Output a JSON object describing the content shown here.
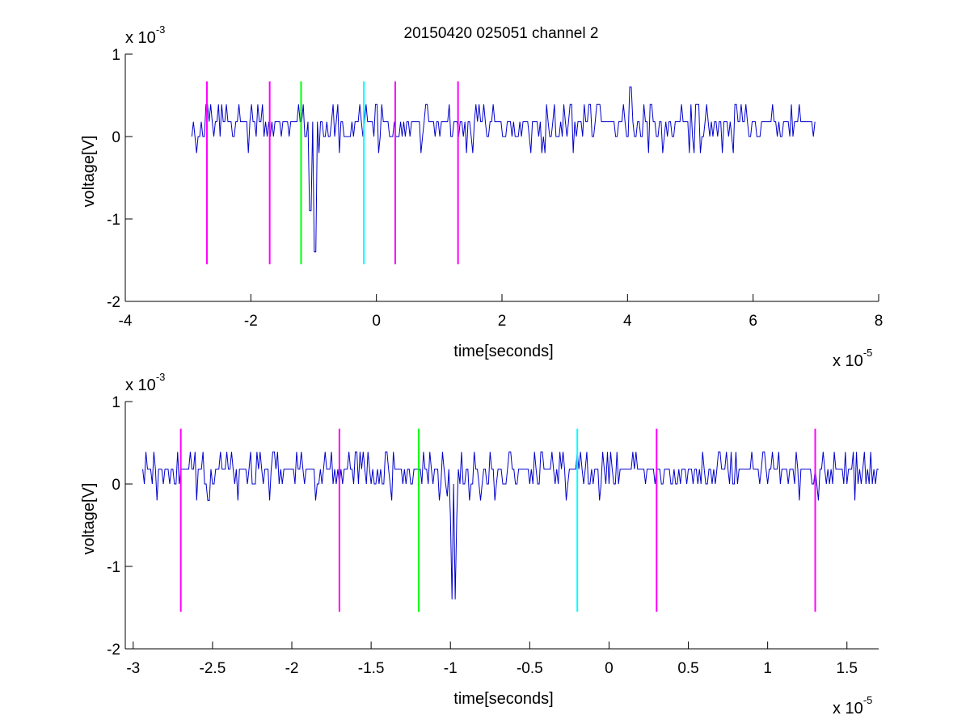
{
  "chart_data": [
    {
      "type": "line",
      "title": "20150420 025051 channel 2",
      "xlabel": "time[seconds]",
      "ylabel": "voltage[V]",
      "x_multiplier": "x 10",
      "x_exponent": "-5",
      "y_multiplier": "x 10",
      "y_exponent": "-3",
      "xlim": [
        -4,
        8
      ],
      "ylim": [
        -2,
        1
      ],
      "xticks": [
        -4,
        -2,
        0,
        2,
        4,
        6,
        8
      ],
      "xtick_labels": [
        "-4",
        "-2",
        "0",
        "2",
        "4",
        "6",
        "8"
      ],
      "yticks": [
        -2,
        -1,
        0,
        1
      ],
      "ytick_labels": [
        "-2",
        "-1",
        "0",
        "1"
      ],
      "grid": false,
      "series": [
        {
          "color": "#0000cc",
          "x_range": [
            -2.94,
            7.0
          ],
          "baseline": 0.18,
          "levels": [
            0.39,
            0.18,
            0.0,
            -0.2
          ],
          "events": [
            {
              "x": -1.05,
              "y": -0.9
            },
            {
              "x": -0.98,
              "y": -1.4
            },
            {
              "x": 4.05,
              "y": 0.6
            }
          ]
        }
      ],
      "markers": [
        {
          "x": -2.7,
          "y_range": [
            -1.55,
            0.67
          ],
          "color": "#ff00ff"
        },
        {
          "x": -1.7,
          "y_range": [
            -1.55,
            0.67
          ],
          "color": "#ff00ff"
        },
        {
          "x": -1.2,
          "y_range": [
            -1.55,
            0.67
          ],
          "color": "#00ff00"
        },
        {
          "x": -0.2,
          "y_range": [
            -1.55,
            0.67
          ],
          "color": "#00ffff"
        },
        {
          "x": 0.3,
          "y_range": [
            -1.55,
            0.67
          ],
          "color": "#ff00ff"
        },
        {
          "x": 1.3,
          "y_range": [
            -1.55,
            0.67
          ],
          "color": "#ff00ff"
        }
      ]
    },
    {
      "type": "line",
      "title": "",
      "xlabel": "time[seconds]",
      "ylabel": "voltage[V]",
      "x_multiplier": "x 10",
      "x_exponent": "-5",
      "y_multiplier": "x 10",
      "y_exponent": "-3",
      "xlim": [
        -3.05,
        1.7
      ],
      "ylim": [
        -2,
        1
      ],
      "xticks": [
        -3,
        -2.5,
        -2,
        -1.5,
        -1,
        -0.5,
        0,
        0.5,
        1,
        1.5
      ],
      "xtick_labels": [
        "-3",
        "-2.5",
        "-2",
        "-1.5",
        "-1",
        "-0.5",
        "0",
        "0.5",
        "1",
        "1.5"
      ],
      "yticks": [
        -2,
        -1,
        0,
        1
      ],
      "ytick_labels": [
        "-2",
        "-1",
        "0",
        "1"
      ],
      "grid": false,
      "series": [
        {
          "color": "#0000cc",
          "x_range": [
            -2.94,
            1.7
          ],
          "baseline": 0.18,
          "levels": [
            0.39,
            0.18,
            0.0,
            -0.2
          ],
          "events": [
            {
              "x": -1.02,
              "y": -0.15
            },
            {
              "x": -1.0,
              "y": -0.4
            },
            {
              "x": -0.99,
              "y": -1.4
            },
            {
              "x": -0.97,
              "y": -1.4
            },
            {
              "x": -0.96,
              "y": -0.4
            }
          ]
        }
      ],
      "markers": [
        {
          "x": -2.7,
          "y_range": [
            -1.55,
            0.67
          ],
          "color": "#ff00ff"
        },
        {
          "x": -1.7,
          "y_range": [
            -1.55,
            0.67
          ],
          "color": "#ff00ff"
        },
        {
          "x": -1.2,
          "y_range": [
            -1.55,
            0.67
          ],
          "color": "#00ff00"
        },
        {
          "x": -0.2,
          "y_range": [
            -1.55,
            0.67
          ],
          "color": "#00ffff"
        },
        {
          "x": 0.3,
          "y_range": [
            -1.55,
            0.67
          ],
          "color": "#ff00ff"
        },
        {
          "x": 1.3,
          "y_range": [
            -1.55,
            0.67
          ],
          "color": "#ff00ff"
        }
      ]
    }
  ]
}
